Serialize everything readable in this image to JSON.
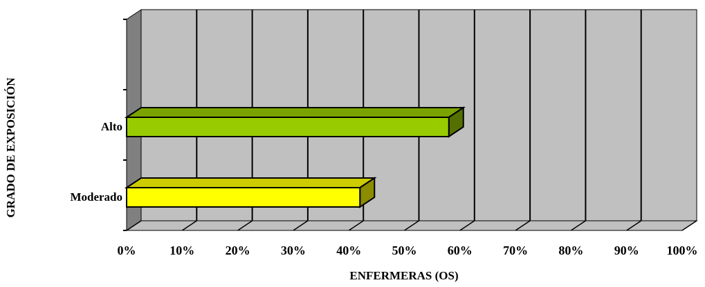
{
  "chart_data": {
    "type": "bar",
    "orientation": "horizontal",
    "three_d": true,
    "categories": [
      "Moderado",
      "Alto"
    ],
    "values": [
      42,
      58
    ],
    "bar_colors": [
      "#ffff00",
      "#99cc00"
    ],
    "xlabel": "ENFERMERAS (OS)",
    "ylabel": "GRADO DE EXPOSICIÓN",
    "xlim": [
      0,
      100
    ],
    "x_ticks": [
      "0%",
      "10%",
      "20%",
      "30%",
      "40%",
      "50%",
      "60%",
      "70%",
      "80%",
      "90%",
      "100%"
    ],
    "grid": true,
    "wall_color": "#c0c0c0",
    "side_wall_color": "#808080"
  }
}
